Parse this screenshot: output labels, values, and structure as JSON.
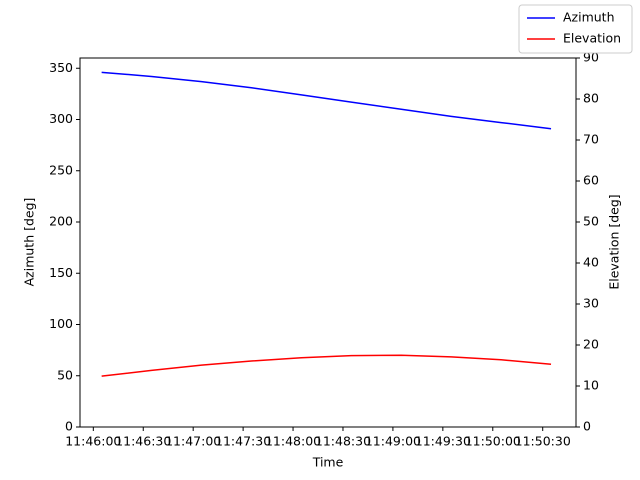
{
  "chart_data": {
    "type": "line",
    "xlabel": "Time",
    "ylabel": "Azimuth [deg]",
    "y2label": "Elevation [deg]",
    "x": [
      "11:46:05",
      "11:46:35",
      "11:47:05",
      "11:47:35",
      "11:48:05",
      "11:48:35",
      "11:49:05",
      "11:49:35",
      "11:50:05",
      "11:50:35"
    ],
    "series": [
      {
        "name": "Azimuth",
        "color": "#0000ff",
        "values": [
          346,
          342,
          337,
          331,
          324,
          317,
          310,
          303,
          297,
          291
        ]
      },
      {
        "name": "Elevation",
        "color": "#ff0000",
        "axis": "y2",
        "values": [
          12.4,
          13.8,
          15.1,
          16.1,
          16.9,
          17.4,
          17.5,
          17.1,
          16.4,
          15.3
        ]
      }
    ],
    "xlim": [
      "11:45:52",
      "11:50:50"
    ],
    "xticks": [
      "11:46:00",
      "11:46:30",
      "11:47:00",
      "11:47:30",
      "11:48:00",
      "11:48:30",
      "11:49:00",
      "11:49:30",
      "11:50:00",
      "11:50:30"
    ],
    "ylim": [
      0,
      360
    ],
    "yticks": [
      0,
      50,
      100,
      150,
      200,
      250,
      300,
      350
    ],
    "y2lim": [
      0,
      90
    ],
    "y2ticks": [
      0,
      10,
      20,
      30,
      40,
      50,
      60,
      70,
      80,
      90
    ],
    "legend": "upper right"
  }
}
